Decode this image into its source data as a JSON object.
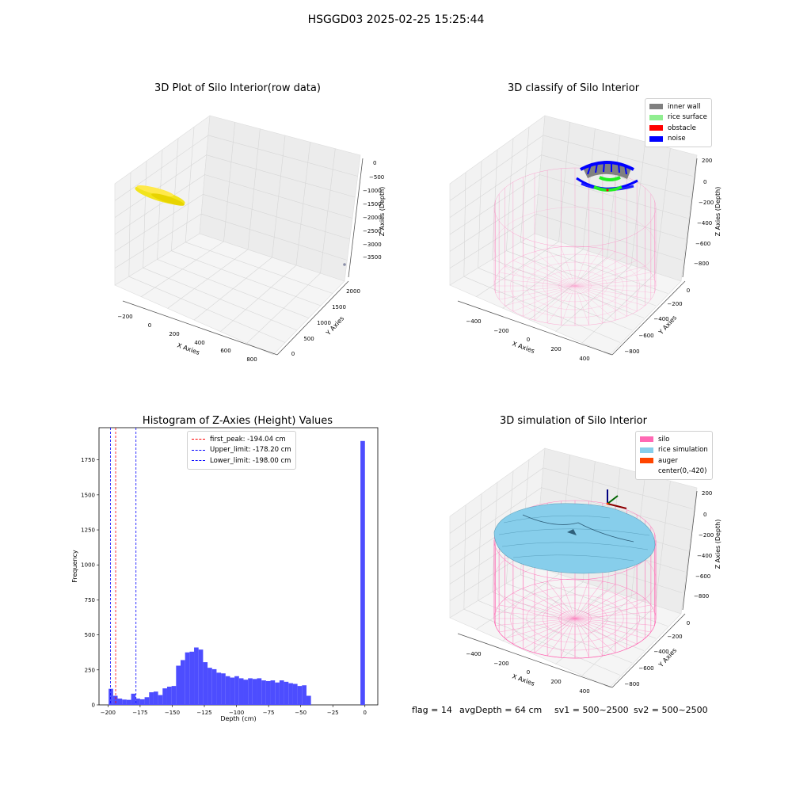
{
  "suptitle": "HSGGD03 2025-02-25 15:25:44",
  "footer": {
    "flag": "flag = 14",
    "avg_depth": "avgDepth = 64 cm",
    "sv1": "sv1 = 500~2500",
    "sv2": "sv2 = 500~2500"
  },
  "colors": {
    "raw_points": "#f2e41c",
    "inner_wall": "#808080",
    "rice_surface": "#90ee90",
    "obstacle": "#ff0000",
    "noise": "#0000ff",
    "silo": "#ff69b4",
    "rice_simulation": "#87ceeb",
    "auger": "#ff4500",
    "hist_bars": "#4d4dff",
    "first_peak": "#ff0000",
    "limits": "#0000ff"
  },
  "chart_data": [
    {
      "type": "scatter",
      "projection": "3d",
      "title": "3D Plot of Silo Interior(row data)",
      "xlabel": "X Axies",
      "ylabel": "Y Axies",
      "zlabel": "Z Axies (Depth)",
      "xticks": [
        "−200",
        "0",
        "200",
        "400",
        "600",
        "800"
      ],
      "yticks": [
        "0",
        "500",
        "1000",
        "1500",
        "2000"
      ],
      "zticks": [
        "0",
        "−500",
        "−1000",
        "−1500",
        "−2000",
        "−2500",
        "−3000",
        "−3500"
      ],
      "grid": true
    },
    {
      "type": "scatter",
      "projection": "3d",
      "title": "3D classify of Silo Interior",
      "xlabel": "X Axies",
      "ylabel": "Y Axies",
      "zlabel": "Z Axies (Depth)",
      "xticks": [
        "−400",
        "−200",
        "0",
        "200",
        "400"
      ],
      "yticks": [
        "0",
        "−200",
        "−400",
        "−600",
        "−800"
      ],
      "zticks": [
        "200",
        "0",
        "−200",
        "−400",
        "−600",
        "−800"
      ],
      "legend": [
        "inner wall",
        "rice surface",
        "obstacle",
        "noise"
      ],
      "legend_position": "top-right",
      "grid": true
    },
    {
      "type": "bar",
      "title": "Histogram of Z-Axies (Height) Values",
      "xlabel": "Depth (cm)",
      "ylabel": "Frequency",
      "xlim": [
        -207,
        10
      ],
      "ylim": [
        0,
        1980
      ],
      "xticks": [
        "−200",
        "−175",
        "−150",
        "−125",
        "−100",
        "−75",
        "−50",
        "−25",
        "0"
      ],
      "yticks": [
        "0",
        "250",
        "500",
        "750",
        "1000",
        "1250",
        "1500",
        "1750"
      ],
      "bin_width": 3.5,
      "bin_start": -199.5,
      "values": [
        115,
        65,
        45,
        38,
        36,
        80,
        45,
        40,
        55,
        90,
        95,
        70,
        118,
        130,
        135,
        280,
        320,
        375,
        380,
        410,
        395,
        305,
        265,
        255,
        230,
        225,
        205,
        195,
        205,
        190,
        180,
        190,
        185,
        190,
        175,
        170,
        175,
        160,
        175,
        165,
        155,
        150,
        135,
        140,
        65
      ],
      "spike": {
        "x0": -3.5,
        "x1": 0,
        "value": 1885
      },
      "vlines": [
        {
          "label": "first_peak: -194.04 cm",
          "x": -194.04,
          "style": "red-dashed"
        },
        {
          "label": "Upper_limit: -178.20 cm",
          "x": -178.2,
          "style": "blue-dashed"
        },
        {
          "label": "Lower_limit: -198.00 cm",
          "x": -198.0,
          "style": "blue-dashed"
        }
      ],
      "legend_position": "top-center"
    },
    {
      "type": "area",
      "projection": "3d",
      "title": "3D simulation of Silo Interior",
      "xlabel": "X Axies",
      "ylabel": "Y Axies",
      "zlabel": "Z Axies (Depth)",
      "xticks": [
        "−400",
        "−200",
        "0",
        "200",
        "400"
      ],
      "yticks": [
        "0",
        "−200",
        "−400",
        "−600",
        "−800"
      ],
      "zticks": [
        "200",
        "0",
        "−200",
        "−400",
        "−600",
        "−800"
      ],
      "legend": [
        "silo",
        "rice simulation",
        "auger",
        "center(0,-420)"
      ],
      "legend_position": "top-right",
      "grid": true
    }
  ]
}
